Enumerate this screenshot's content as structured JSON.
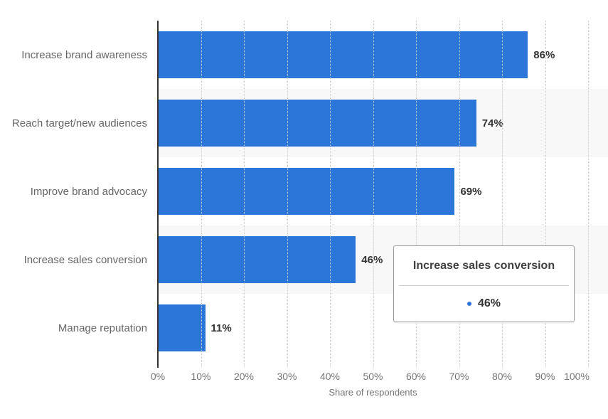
{
  "chart_data": {
    "type": "bar",
    "orientation": "horizontal",
    "categories": [
      "Increase brand awareness",
      "Reach target/new audiences",
      "Improve brand advocacy",
      "Increase sales conversion",
      "Manage reputation"
    ],
    "values": [
      86,
      74,
      69,
      46,
      11
    ],
    "value_labels": [
      "86%",
      "74%",
      "69%",
      "46%",
      "11%"
    ],
    "title": "",
    "xlabel": "Share of respondents",
    "ylabel": "",
    "xlim": [
      0,
      100
    ],
    "x_ticks": [
      "0%",
      "10%",
      "20%",
      "30%",
      "40%",
      "50%",
      "60%",
      "70%",
      "80%",
      "90%",
      "100%"
    ],
    "grid": "vertical-dotted",
    "legend": "none",
    "bar_color": "#2c76d9",
    "stripe_color": "#f8f8f8",
    "striped_rows": [
      1,
      3
    ]
  },
  "tooltip": {
    "title": "Increase sales conversion",
    "value_label": "46%"
  }
}
